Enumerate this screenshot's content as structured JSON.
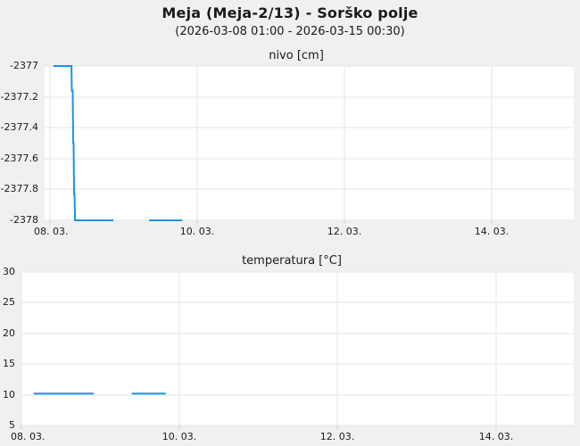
{
  "page": {
    "title": "Meja (Meja-2/13) - Sorško polje",
    "subtitle": "(2026-03-08 01:00 - 2026-03-15 00:30)"
  },
  "colors": {
    "background": "#f0f0f0",
    "plot_background": "#ffffff",
    "grid": "#e6e6e6",
    "tick_mark": "#cccccc",
    "series_blue": "#1a93e5",
    "text": "#1a1a1a"
  },
  "chart_data": [
    {
      "type": "line",
      "title": "nivo [cm]",
      "ylabel": "nivo [cm]",
      "xlabel": "",
      "legend": "none",
      "grid": true,
      "x_tick_labels": [
        "08. 03.",
        "10. 03.",
        "12. 03.",
        "14. 03."
      ],
      "x_tick_days": [
        0,
        2,
        4,
        6
      ],
      "x_range_days": [
        -0.073,
        7.109
      ],
      "ylim": [
        -2378,
        -2377
      ],
      "y_tick_values": [
        -2377,
        -2377.2,
        -2377.4,
        -2377.6,
        -2377.8,
        -2378
      ],
      "y_tick_labels": [
        "-2377",
        "-2377.2",
        "-2377.4",
        "-2377.6",
        "-2377.8",
        "-2378"
      ],
      "series": [
        {
          "name": "nivo",
          "color": "#1a93e5",
          "points": [
            [
              0.045,
              -2377
            ],
            [
              0.291,
              -2377
            ],
            [
              0.297,
              -2377.16
            ],
            [
              0.309,
              -2377.16
            ],
            [
              0.315,
              -2377.5
            ],
            [
              0.321,
              -2377.5
            ],
            [
              0.327,
              -2377.83
            ],
            [
              0.333,
              -2377.83
            ],
            [
              0.34,
              -2378
            ],
            [
              0.861,
              -2378
            ],
            null,
            [
              1.345,
              -2378
            ],
            [
              1.794,
              -2378
            ]
          ]
        }
      ]
    },
    {
      "type": "line",
      "title": "temperatura [°C]",
      "ylabel": "temperatura [°C]",
      "xlabel": "",
      "legend": "none",
      "grid": true,
      "x_tick_labels": [
        "08. 03.",
        "10. 03.",
        "12. 03.",
        "14. 03."
      ],
      "x_tick_days": [
        0,
        2,
        4,
        6
      ],
      "x_range_days": [
        0,
        6.985
      ],
      "ylim": [
        5,
        30
      ],
      "y_tick_values": [
        30,
        25,
        20,
        15,
        10,
        5
      ],
      "y_tick_labels": [
        "30",
        "25",
        "20",
        "15",
        "10",
        "5"
      ],
      "series": [
        {
          "name": "temperatura",
          "color": "#1a93e5",
          "points": [
            [
              0.155,
              10.2
            ],
            [
              0.914,
              10.2
            ],
            null,
            [
              1.396,
              10.2
            ],
            [
              1.825,
              10.2
            ]
          ]
        }
      ]
    }
  ]
}
